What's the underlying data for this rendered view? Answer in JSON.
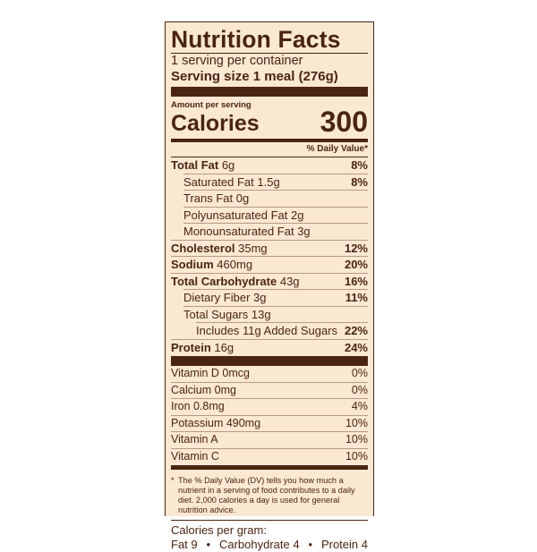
{
  "title": "Nutrition Facts",
  "servings_per_container": "1 serving per container",
  "serving_size_label": "Serving size",
  "serving_size_value": "1 meal (276g)",
  "amount_per_serving": "Amount per serving",
  "calories_label": "Calories",
  "calories_value": "300",
  "daily_value_header": "% Daily Value*",
  "nutrients": [
    {
      "name": "Total Fat",
      "amount": "6g",
      "dv": "8%",
      "bold": true,
      "indent": 0
    },
    {
      "name": "Saturated Fat",
      "amount": "1.5g",
      "dv": "8%",
      "bold": false,
      "indent": 1
    },
    {
      "name": "Trans Fat",
      "amount": "0g",
      "dv": "",
      "bold": false,
      "indent": 1
    },
    {
      "name": "Polyunsaturated Fat",
      "amount": "2g",
      "dv": "",
      "bold": false,
      "indent": 1
    },
    {
      "name": "Monounsaturated Fat",
      "amount": "3g",
      "dv": "",
      "bold": false,
      "indent": 1
    },
    {
      "name": "Cholesterol",
      "amount": "35mg",
      "dv": "12%",
      "bold": true,
      "indent": 0
    },
    {
      "name": "Sodium",
      "amount": "460mg",
      "dv": "20%",
      "bold": true,
      "indent": 0
    },
    {
      "name": "Total Carbohydrate",
      "amount": "43g",
      "dv": "16%",
      "bold": true,
      "indent": 0
    },
    {
      "name": "Dietary Fiber",
      "amount": "3g",
      "dv": "11%",
      "bold": false,
      "indent": 1
    },
    {
      "name": "Total Sugars",
      "amount": "13g",
      "dv": "",
      "bold": false,
      "indent": 1
    },
    {
      "name": "Includes 11g Added Sugars",
      "amount": "",
      "dv": "22%",
      "bold": false,
      "indent": 2
    },
    {
      "name": "Protein",
      "amount": "16g",
      "dv": "24%",
      "bold": true,
      "indent": 0
    }
  ],
  "vitamins": [
    {
      "name": "Vitamin D 0mcg",
      "dv": "0%"
    },
    {
      "name": "Calcium 0mg",
      "dv": "0%"
    },
    {
      "name": "Iron 0.8mg",
      "dv": "4%"
    },
    {
      "name": "Potassium 490mg",
      "dv": "10%"
    },
    {
      "name": "Vitamin A",
      "dv": "10%"
    },
    {
      "name": "Vitamin C",
      "dv": "10%"
    }
  ],
  "footnote_star": "*",
  "footnote": "The % Daily Value (DV) tells you how much a nutrient in a serving of food contributes to a daily diet. 2,000 calories a day is used for general nutrition advice.",
  "calories_per_gram_label": "Calories per gram:",
  "calories_per_gram": [
    "Fat 9",
    "Carbohydrate 4",
    "Protein 4"
  ],
  "bullet": "•",
  "colors": {
    "background": "#fbe8d3",
    "ink": "#4a2412"
  }
}
